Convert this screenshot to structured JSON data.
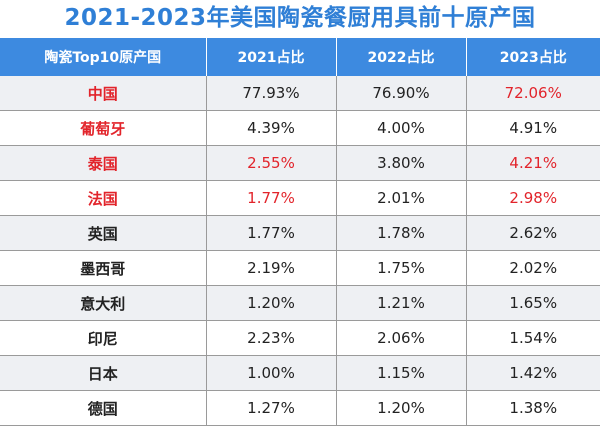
{
  "title": "2021-2023年美国陶瓷餐厨用具前十原产国",
  "highlight_color": "#e2242b",
  "header_color": "#3d8ae0",
  "chart_data": {
    "type": "table",
    "title": "2021-2023年美国陶瓷餐厨用具前十原产国",
    "columns": [
      "陶瓷Top10原产国",
      "2021占比",
      "2022占比",
      "2023占比"
    ],
    "rows": [
      {
        "country": "中国",
        "v2021": "77.93%",
        "v2022": "76.90%",
        "v2023": "72.06%",
        "red": {
          "country": true,
          "v2021": false,
          "v2022": false,
          "v2023": true
        }
      },
      {
        "country": "葡萄牙",
        "v2021": "4.39%",
        "v2022": "4.00%",
        "v2023": "4.91%",
        "red": {
          "country": true,
          "v2021": false,
          "v2022": false,
          "v2023": false
        }
      },
      {
        "country": "泰国",
        "v2021": "2.55%",
        "v2022": "3.80%",
        "v2023": "4.21%",
        "red": {
          "country": true,
          "v2021": true,
          "v2022": false,
          "v2023": true
        }
      },
      {
        "country": "法国",
        "v2021": "1.77%",
        "v2022": "2.01%",
        "v2023": "2.98%",
        "red": {
          "country": true,
          "v2021": true,
          "v2022": false,
          "v2023": true
        }
      },
      {
        "country": "英国",
        "v2021": "1.77%",
        "v2022": "1.78%",
        "v2023": "2.62%",
        "red": {
          "country": false,
          "v2021": false,
          "v2022": false,
          "v2023": false
        }
      },
      {
        "country": "墨西哥",
        "v2021": "2.19%",
        "v2022": "1.75%",
        "v2023": "2.02%",
        "red": {
          "country": false,
          "v2021": false,
          "v2022": false,
          "v2023": false
        }
      },
      {
        "country": "意大利",
        "v2021": "1.20%",
        "v2022": "1.21%",
        "v2023": "1.65%",
        "red": {
          "country": false,
          "v2021": false,
          "v2022": false,
          "v2023": false
        }
      },
      {
        "country": "印尼",
        "v2021": "2.23%",
        "v2022": "2.06%",
        "v2023": "1.54%",
        "red": {
          "country": false,
          "v2021": false,
          "v2022": false,
          "v2023": false
        }
      },
      {
        "country": "日本",
        "v2021": "1.00%",
        "v2022": "1.15%",
        "v2023": "1.42%",
        "red": {
          "country": false,
          "v2021": false,
          "v2022": false,
          "v2023": false
        }
      },
      {
        "country": "德国",
        "v2021": "1.27%",
        "v2022": "1.20%",
        "v2023": "1.38%",
        "red": {
          "country": false,
          "v2021": false,
          "v2022": false,
          "v2023": false
        }
      }
    ]
  }
}
